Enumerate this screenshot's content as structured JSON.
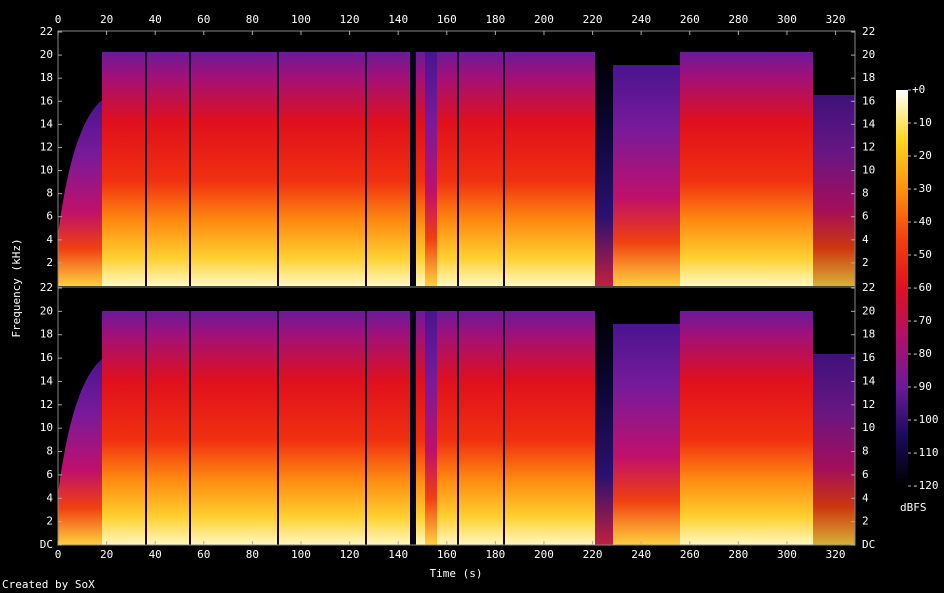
{
  "chart_data": {
    "type": "spectrogram",
    "x_label": "Time (s)",
    "y_label": "Frequency (kHz)",
    "xlim": [
      0,
      328
    ],
    "xticks": [
      0,
      20,
      40,
      60,
      80,
      100,
      120,
      140,
      160,
      180,
      200,
      220,
      240,
      260,
      280,
      300,
      320
    ],
    "channels": [
      {
        "ylim": [
          0,
          22
        ],
        "yticks": [
          2,
          4,
          6,
          8,
          10,
          12,
          14,
          16,
          18,
          20,
          22
        ]
      },
      {
        "ylim": [
          0,
          22
        ],
        "yticks": [
          {
            "value": 0,
            "label": "DC"
          },
          2,
          4,
          6,
          8,
          10,
          12,
          14,
          16,
          18,
          20,
          22
        ]
      }
    ],
    "colorbar": {
      "label": "dBFS",
      "lim": [
        -120,
        0
      ],
      "ticks": [
        {
          "value": 0,
          "label": "+0"
        },
        -10,
        -20,
        -30,
        -40,
        -50,
        -60,
        -70,
        -80,
        -90,
        -100,
        -110,
        -120
      ],
      "colormap": [
        "#000000",
        "#1a0a5a",
        "#6a1a9a",
        "#b0106a",
        "#e01020",
        "#f44010",
        "#ff9010",
        "#ffd820",
        "#ffffff"
      ]
    },
    "footer": "Created by SoX"
  }
}
